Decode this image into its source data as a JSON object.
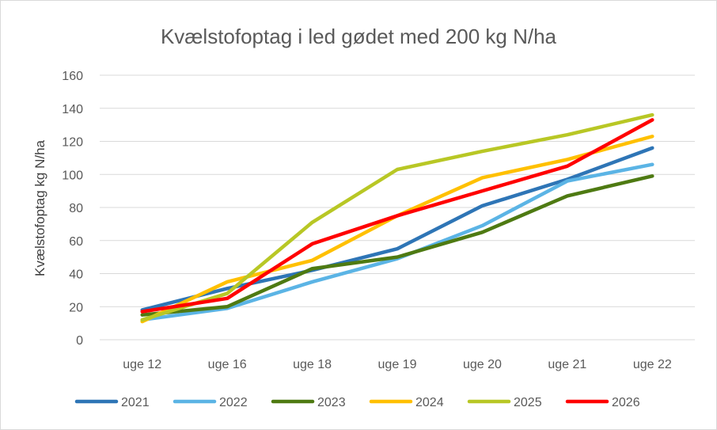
{
  "chart_data": {
    "type": "line",
    "title": "Kvælstofoptag i led gødet med 200 kg N/ha",
    "xlabel": "",
    "ylabel": "Kvælstofoptag kg N/ha",
    "categories": [
      "uge 12",
      "uge 16",
      "uge 18",
      "uge 19",
      "uge 20",
      "uge 21",
      "uge 22"
    ],
    "ylim": [
      0,
      160
    ],
    "yticks": [
      0,
      20,
      40,
      60,
      80,
      100,
      120,
      140,
      160
    ],
    "grid": true,
    "legend": "bottom",
    "series": [
      {
        "name": "2021",
        "color": "#2E75B6",
        "values": [
          18,
          31,
          42,
          55,
          81,
          97,
          116
        ]
      },
      {
        "name": "2022",
        "color": "#5BB4E5",
        "values": [
          12,
          19,
          35,
          49,
          69,
          96,
          106
        ]
      },
      {
        "name": "2023",
        "color": "#4E7A12",
        "values": [
          15,
          20,
          43,
          50,
          65,
          87,
          99
        ]
      },
      {
        "name": "2024",
        "color": "#FFC000",
        "values": [
          11,
          35,
          48,
          75,
          98,
          109,
          123
        ]
      },
      {
        "name": "2025",
        "color": "#B8C725",
        "values": [
          12,
          28,
          71,
          103,
          114,
          124,
          136
        ]
      },
      {
        "name": "2026",
        "color": "#FF0000",
        "values": [
          17,
          25,
          58,
          75,
          90,
          105,
          133
        ]
      }
    ]
  }
}
